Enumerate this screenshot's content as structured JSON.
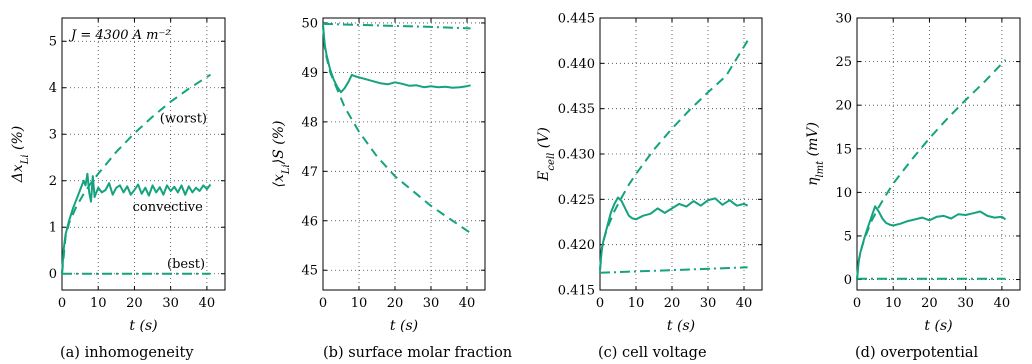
{
  "chart_data": [
    {
      "type": "line",
      "caption": "(a)  inhomogeneity",
      "xlabel": "t (s)",
      "ylabel": "Δx_Li (%)",
      "xlim": [
        0,
        45
      ],
      "ylim": [
        -0.35,
        5.5
      ],
      "xticks": [
        "0",
        "10",
        "20",
        "30",
        "40"
      ],
      "yticks": [
        "0",
        "1",
        "2",
        "3",
        "4",
        "5"
      ],
      "grid": true,
      "annotations": [
        {
          "text": "J = 4300 A m⁻²",
          "x": 2.5,
          "y": 5.05
        },
        {
          "text": "(worst)",
          "x": 27,
          "y": 3.25
        },
        {
          "text": "convective",
          "x": 19.5,
          "y": 1.35
        },
        {
          "text": "(best)",
          "x": 29,
          "y": 0.12
        }
      ],
      "series": [
        {
          "style": "dashed",
          "x": [
            0,
            1,
            2,
            4,
            6,
            8,
            10,
            15,
            20,
            25,
            30,
            35,
            41
          ],
          "y": [
            0,
            0.8,
            1.1,
            1.45,
            1.72,
            1.95,
            2.15,
            2.62,
            3.02,
            3.38,
            3.7,
            3.98,
            4.28
          ]
        },
        {
          "style": "solid",
          "x": [
            0,
            0.5,
            1,
            2,
            3,
            4,
            5,
            6,
            6.5,
            7,
            7.5,
            8,
            8.5,
            9,
            10,
            11,
            12,
            13,
            14,
            15,
            16,
            17,
            18,
            19,
            20,
            21,
            22,
            23,
            24,
            25,
            26,
            27,
            28,
            29,
            30,
            31,
            32,
            33,
            34,
            35,
            36,
            37,
            38,
            39,
            40,
            41
          ],
          "y": [
            0,
            0.55,
            0.85,
            1.15,
            1.4,
            1.6,
            1.8,
            2.0,
            1.9,
            2.15,
            1.75,
            1.55,
            2.1,
            1.65,
            1.85,
            1.75,
            1.8,
            1.95,
            1.7,
            1.85,
            1.9,
            1.75,
            1.88,
            1.7,
            1.8,
            1.92,
            1.72,
            1.85,
            1.68,
            1.9,
            1.75,
            1.86,
            1.7,
            1.9,
            1.78,
            1.87,
            1.75,
            1.9,
            1.7,
            1.88,
            1.75,
            1.85,
            1.78,
            1.9,
            1.82,
            1.92
          ]
        },
        {
          "style": "dashdot",
          "x": [
            0,
            41
          ],
          "y": [
            0,
            0
          ]
        }
      ]
    },
    {
      "type": "line",
      "caption": "(b)  surface molar fraction",
      "xlabel": "t (s)",
      "ylabel": "⟨x_Li⟩S (%)",
      "xlim": [
        0,
        45
      ],
      "ylim": [
        44.6,
        50.1
      ],
      "xticks": [
        "0",
        "10",
        "20",
        "30",
        "40"
      ],
      "yticks": [
        "45",
        "46",
        "47",
        "48",
        "49",
        "50"
      ],
      "grid": true,
      "annotations": [],
      "series": [
        {
          "style": "dashed",
          "x": [
            0,
            0.5,
            1,
            2,
            4,
            6,
            8,
            10,
            15,
            20,
            25,
            30,
            35,
            41
          ],
          "y": [
            49.95,
            49.5,
            49.3,
            49.0,
            48.65,
            48.3,
            48.05,
            47.8,
            47.3,
            46.9,
            46.6,
            46.3,
            46.05,
            45.75
          ]
        },
        {
          "style": "solid",
          "x": [
            0,
            0.5,
            1,
            2,
            3,
            4,
            5,
            6,
            7,
            8,
            9,
            10,
            12,
            14,
            16,
            18,
            20,
            22,
            24,
            26,
            28,
            30,
            32,
            34,
            36,
            38,
            40,
            41
          ],
          "y": [
            49.95,
            49.55,
            49.35,
            49.05,
            48.85,
            48.7,
            48.6,
            48.68,
            48.8,
            48.95,
            48.92,
            48.9,
            48.86,
            48.82,
            48.78,
            48.76,
            48.8,
            48.77,
            48.73,
            48.74,
            48.7,
            48.72,
            48.7,
            48.71,
            48.69,
            48.7,
            48.72,
            48.74
          ]
        },
        {
          "style": "dashdot",
          "x": [
            0,
            10,
            20,
            30,
            41
          ],
          "y": [
            49.98,
            49.96,
            49.94,
            49.92,
            49.89
          ]
        }
      ]
    },
    {
      "type": "line",
      "caption": "(c)  cell voltage",
      "xlabel": "t (s)",
      "ylabel": "E_cell (V)",
      "xlim": [
        0,
        45
      ],
      "ylim": [
        0.415,
        0.445
      ],
      "xticks": [
        "0",
        "10",
        "20",
        "30",
        "40"
      ],
      "yticks": [
        "0.415",
        "0.420",
        "0.425",
        "0.430",
        "0.435",
        "0.440",
        "0.445"
      ],
      "grid": true,
      "annotations": [],
      "series": [
        {
          "style": "dashed",
          "x": [
            0,
            0.5,
            1,
            2,
            4,
            6,
            8,
            10,
            15,
            20,
            25,
            30,
            35,
            41
          ],
          "y": [
            0.4172,
            0.4195,
            0.4205,
            0.4218,
            0.4237,
            0.4252,
            0.4266,
            0.4278,
            0.4305,
            0.4328,
            0.4349,
            0.4368,
            0.4386,
            0.4425
          ]
        },
        {
          "style": "solid",
          "x": [
            0,
            0.5,
            1,
            2,
            3,
            4,
            5,
            6,
            7,
            8,
            9,
            10,
            12,
            14,
            16,
            18,
            20,
            22,
            24,
            26,
            28,
            30,
            32,
            34,
            36,
            38,
            40,
            41
          ],
          "y": [
            0.4172,
            0.4195,
            0.4205,
            0.422,
            0.4235,
            0.4245,
            0.4252,
            0.4248,
            0.424,
            0.4232,
            0.4229,
            0.4228,
            0.4232,
            0.4234,
            0.424,
            0.4235,
            0.424,
            0.4245,
            0.4242,
            0.4248,
            0.4243,
            0.4249,
            0.4251,
            0.4244,
            0.4249,
            0.4243,
            0.4245,
            0.4243
          ]
        },
        {
          "style": "dashdot",
          "x": [
            0,
            41
          ],
          "y": [
            0.4169,
            0.4175
          ]
        }
      ]
    },
    {
      "type": "line",
      "caption": "(d)  overpotential",
      "xlabel": "t (s)",
      "ylabel": "η_lmt (mV)",
      "xlim": [
        0,
        45
      ],
      "ylim": [
        -1.2,
        30
      ],
      "xticks": [
        "0",
        "10",
        "20",
        "30",
        "40"
      ],
      "yticks": [
        "0",
        "5",
        "10",
        "15",
        "20",
        "25",
        "30"
      ],
      "grid": true,
      "annotations": [],
      "series": [
        {
          "style": "dashed",
          "x": [
            0,
            0.5,
            1,
            2,
            4,
            6,
            8,
            10,
            15,
            20,
            25,
            30,
            35,
            41
          ],
          "y": [
            0,
            2.2,
            3.2,
            4.6,
            6.7,
            8.3,
            9.7,
            11,
            13.7,
            16.2,
            18.5,
            20.6,
            22.6,
            25.2
          ]
        },
        {
          "style": "solid",
          "x": [
            0,
            0.5,
            1,
            2,
            3,
            4,
            5,
            6,
            7,
            8,
            9,
            10,
            12,
            14,
            16,
            18,
            20,
            22,
            24,
            26,
            28,
            30,
            32,
            34,
            36,
            38,
            40,
            41
          ],
          "y": [
            0,
            2.2,
            3.2,
            4.7,
            6.0,
            7.2,
            8.4,
            7.8,
            7.0,
            6.5,
            6.3,
            6.2,
            6.4,
            6.7,
            6.9,
            7.1,
            6.8,
            7.2,
            7.3,
            7.0,
            7.5,
            7.4,
            7.6,
            7.8,
            7.3,
            7.1,
            7.2,
            6.9
          ]
        },
        {
          "style": "dashdot",
          "x": [
            0,
            41
          ],
          "y": [
            0.1,
            0.1
          ]
        }
      ]
    }
  ]
}
